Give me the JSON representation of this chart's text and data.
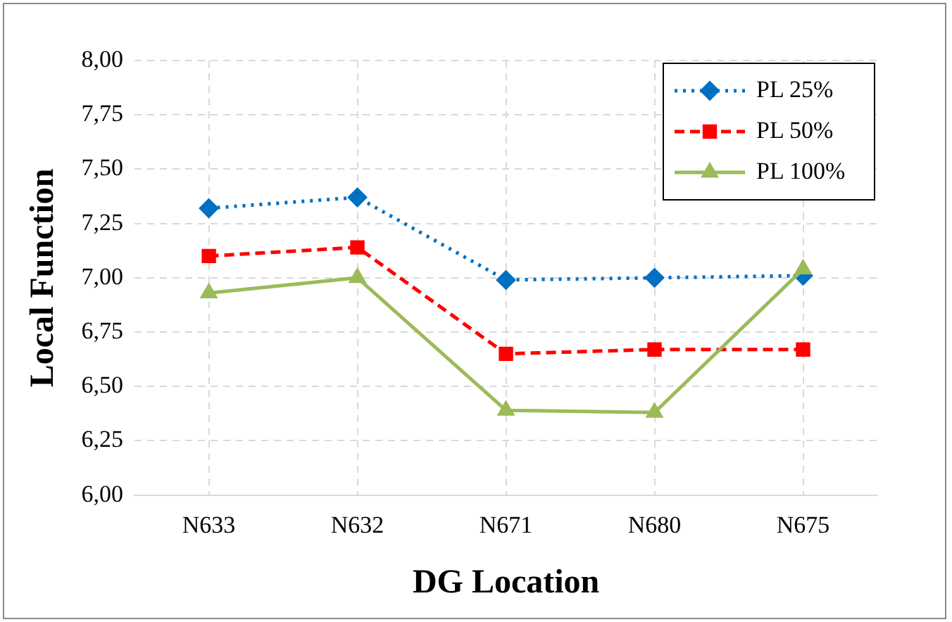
{
  "chart_data": {
    "type": "line",
    "xlabel": "DG Location",
    "ylabel": "Local Function",
    "categories": [
      "N633",
      "N632",
      "N671",
      "N680",
      "N675"
    ],
    "series": [
      {
        "name": "PL 25%",
        "color": "#0070c0",
        "values": [
          7.32,
          7.37,
          6.99,
          7.0,
          7.01
        ],
        "marker": "diamond",
        "line_style": "dotted"
      },
      {
        "name": "PL 50%",
        "color": "#ff0000",
        "values": [
          7.1,
          7.14,
          6.65,
          6.67,
          6.67
        ],
        "marker": "square",
        "line_style": "dashed"
      },
      {
        "name": "PL 100%",
        "color": "#9bbb59",
        "values": [
          6.93,
          7.0,
          6.39,
          6.38,
          7.04
        ],
        "marker": "triangle",
        "line_style": "solid"
      }
    ],
    "ylim": [
      6,
      8
    ],
    "yticks": [
      {
        "value": 6,
        "label": "6,00"
      },
      {
        "value": 6.25,
        "label": "6,25"
      },
      {
        "value": 6.5,
        "label": "6,50"
      },
      {
        "value": 6.75,
        "label": "6,75"
      },
      {
        "value": 7,
        "label": "7,00"
      },
      {
        "value": 7.25,
        "label": "7,25"
      },
      {
        "value": 7.5,
        "label": "7,50"
      },
      {
        "value": 7.75,
        "label": "7,75"
      },
      {
        "value": 8,
        "label": "8,00"
      }
    ],
    "grid": true,
    "legend": "top right"
  }
}
